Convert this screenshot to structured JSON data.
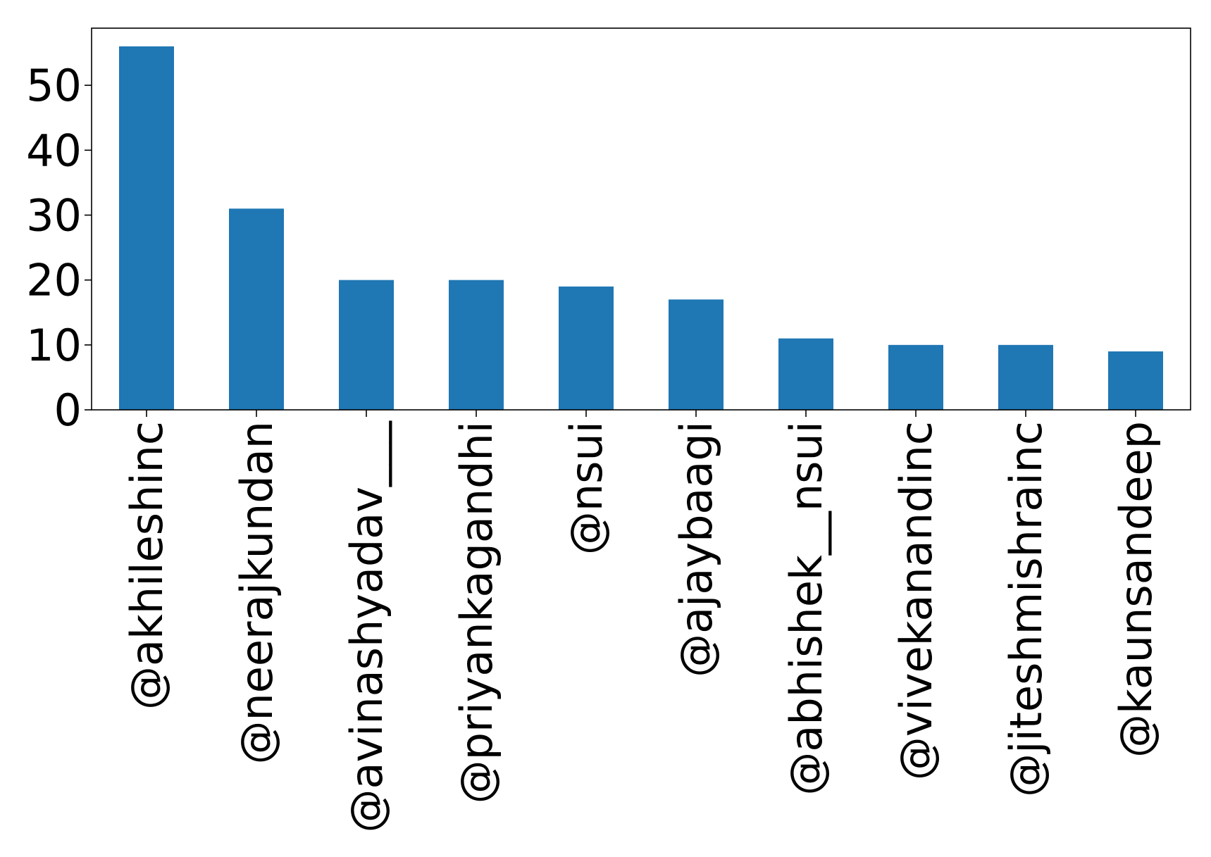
{
  "chart_data": {
    "type": "bar",
    "title": "",
    "xlabel": "",
    "ylabel": "",
    "categories": [
      "@akhileshinc",
      "@neerajkundan",
      "@avinashyadav___",
      "@priyankagandhi",
      "@nsui",
      "@ajaybaagi",
      "@abhishek__nsui",
      "@vivekanandinc",
      "@jiteshmishrainc",
      "@kaunsandeep"
    ],
    "values": [
      56,
      31,
      20,
      20,
      19,
      17,
      11,
      10,
      10,
      9
    ],
    "ylim": [
      0,
      58.8
    ],
    "yticks": [
      0,
      10,
      20,
      30,
      40,
      50
    ],
    "grid": false,
    "legend": "none",
    "bar_color": "#1f77b4"
  }
}
